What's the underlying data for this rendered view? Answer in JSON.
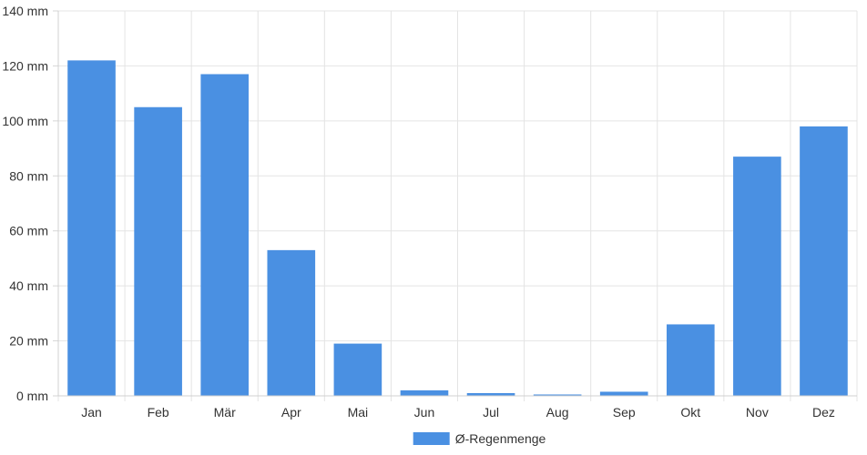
{
  "chart_data": {
    "type": "bar",
    "categories": [
      "Jan",
      "Feb",
      "Mär",
      "Apr",
      "Mai",
      "Jun",
      "Jul",
      "Aug",
      "Sep",
      "Okt",
      "Nov",
      "Dez"
    ],
    "series": [
      {
        "name": "Ø-Regenmenge",
        "values": [
          122,
          105,
          117,
          53,
          19,
          2,
          1,
          0.5,
          1.5,
          26,
          87,
          98
        ],
        "color": "#4a90e2"
      }
    ],
    "ylim": [
      0,
      140
    ],
    "yticks": [
      0,
      20,
      40,
      60,
      80,
      100,
      120,
      140
    ],
    "yunit": "mm",
    "grid": true,
    "legend_position": "bottom-center"
  }
}
